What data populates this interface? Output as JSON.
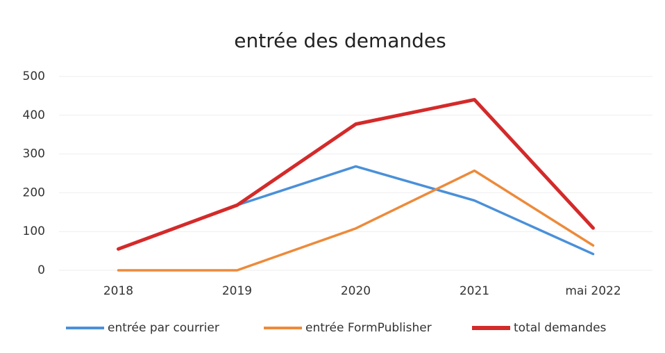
{
  "chart_data": {
    "type": "line",
    "title": "entrée des demandes",
    "categories": [
      "2018",
      "2019",
      "2020",
      "2021",
      "mai 2022"
    ],
    "series": [
      {
        "name": "entrée par courrier",
        "color": "#4a90d9",
        "values": [
          55,
          168,
          268,
          180,
          42
        ]
      },
      {
        "name": "entrée FormPublisher",
        "color": "#ed8a3a",
        "values": [
          0,
          0,
          108,
          257,
          64
        ]
      },
      {
        "name": "total demandes",
        "color": "#d42a2a",
        "values": [
          55,
          168,
          377,
          440,
          109
        ]
      }
    ],
    "ylim": [
      0,
      500
    ],
    "yticks": [
      0,
      100,
      200,
      300,
      400,
      500
    ],
    "grid": true,
    "legend": "bottom"
  }
}
